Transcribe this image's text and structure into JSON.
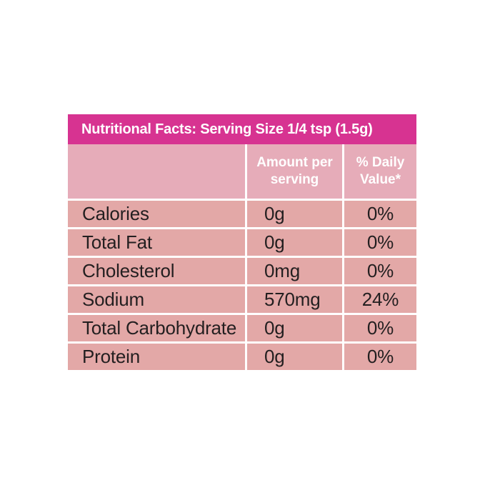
{
  "label": {
    "title": "Nutritional Facts: Serving Size 1/4 tsp (1.5g)",
    "column_headers": {
      "nutrient": "",
      "amount": "Amount per serving",
      "daily_value": "% Daily Value*"
    },
    "rows": [
      {
        "label": "Calories",
        "amount": "0g",
        "daily_value": "0%"
      },
      {
        "label": "Total Fat",
        "amount": "0g",
        "daily_value": "0%"
      },
      {
        "label": "Cholesterol",
        "amount": "0mg",
        "daily_value": "0%"
      },
      {
        "label": "Sodium",
        "amount": "570mg",
        "daily_value": "24%"
      },
      {
        "label": "Total Carbohydrate",
        "amount": "0g",
        "daily_value": "0%"
      },
      {
        "label": "Protein",
        "amount": "0g",
        "daily_value": "0%"
      }
    ],
    "colors": {
      "title_bg": "#D73391",
      "header_row_bg": "#E6ACB9",
      "data_row_bg": "#E3A8A7",
      "title_text": "#FFFFFF",
      "header_text": "#FFFFFF",
      "row_text": "#231F20",
      "page_bg": "#FFFFFF"
    }
  }
}
